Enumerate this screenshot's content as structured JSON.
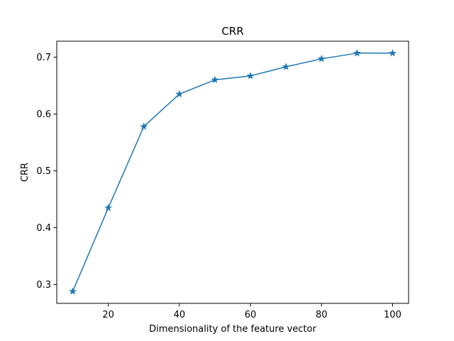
{
  "chart_data": {
    "type": "line",
    "title": "CRR",
    "xlabel": "Dimensionality of the feature vector",
    "ylabel": "CRR",
    "x": [
      10,
      20,
      30,
      40,
      50,
      60,
      70,
      80,
      90,
      100
    ],
    "series": [
      {
        "values": [
          0.288,
          0.435,
          0.578,
          0.635,
          0.66,
          0.667,
          0.683,
          0.697,
          0.707,
          0.707
        ],
        "color": "#1f77b4",
        "marker": "star"
      }
    ],
    "xlim": [
      5.5,
      104.5
    ],
    "ylim": [
      0.267,
      0.728
    ],
    "xticks": [
      20,
      40,
      60,
      80,
      100
    ],
    "xtick_labels": [
      "20",
      "40",
      "60",
      "80",
      "100"
    ],
    "yticks": [
      0.3,
      0.4,
      0.5,
      0.6,
      0.7
    ],
    "ytick_labels": [
      "0.3",
      "0.4",
      "0.5",
      "0.6",
      "0.7"
    ],
    "grid": false,
    "legend": "none"
  }
}
